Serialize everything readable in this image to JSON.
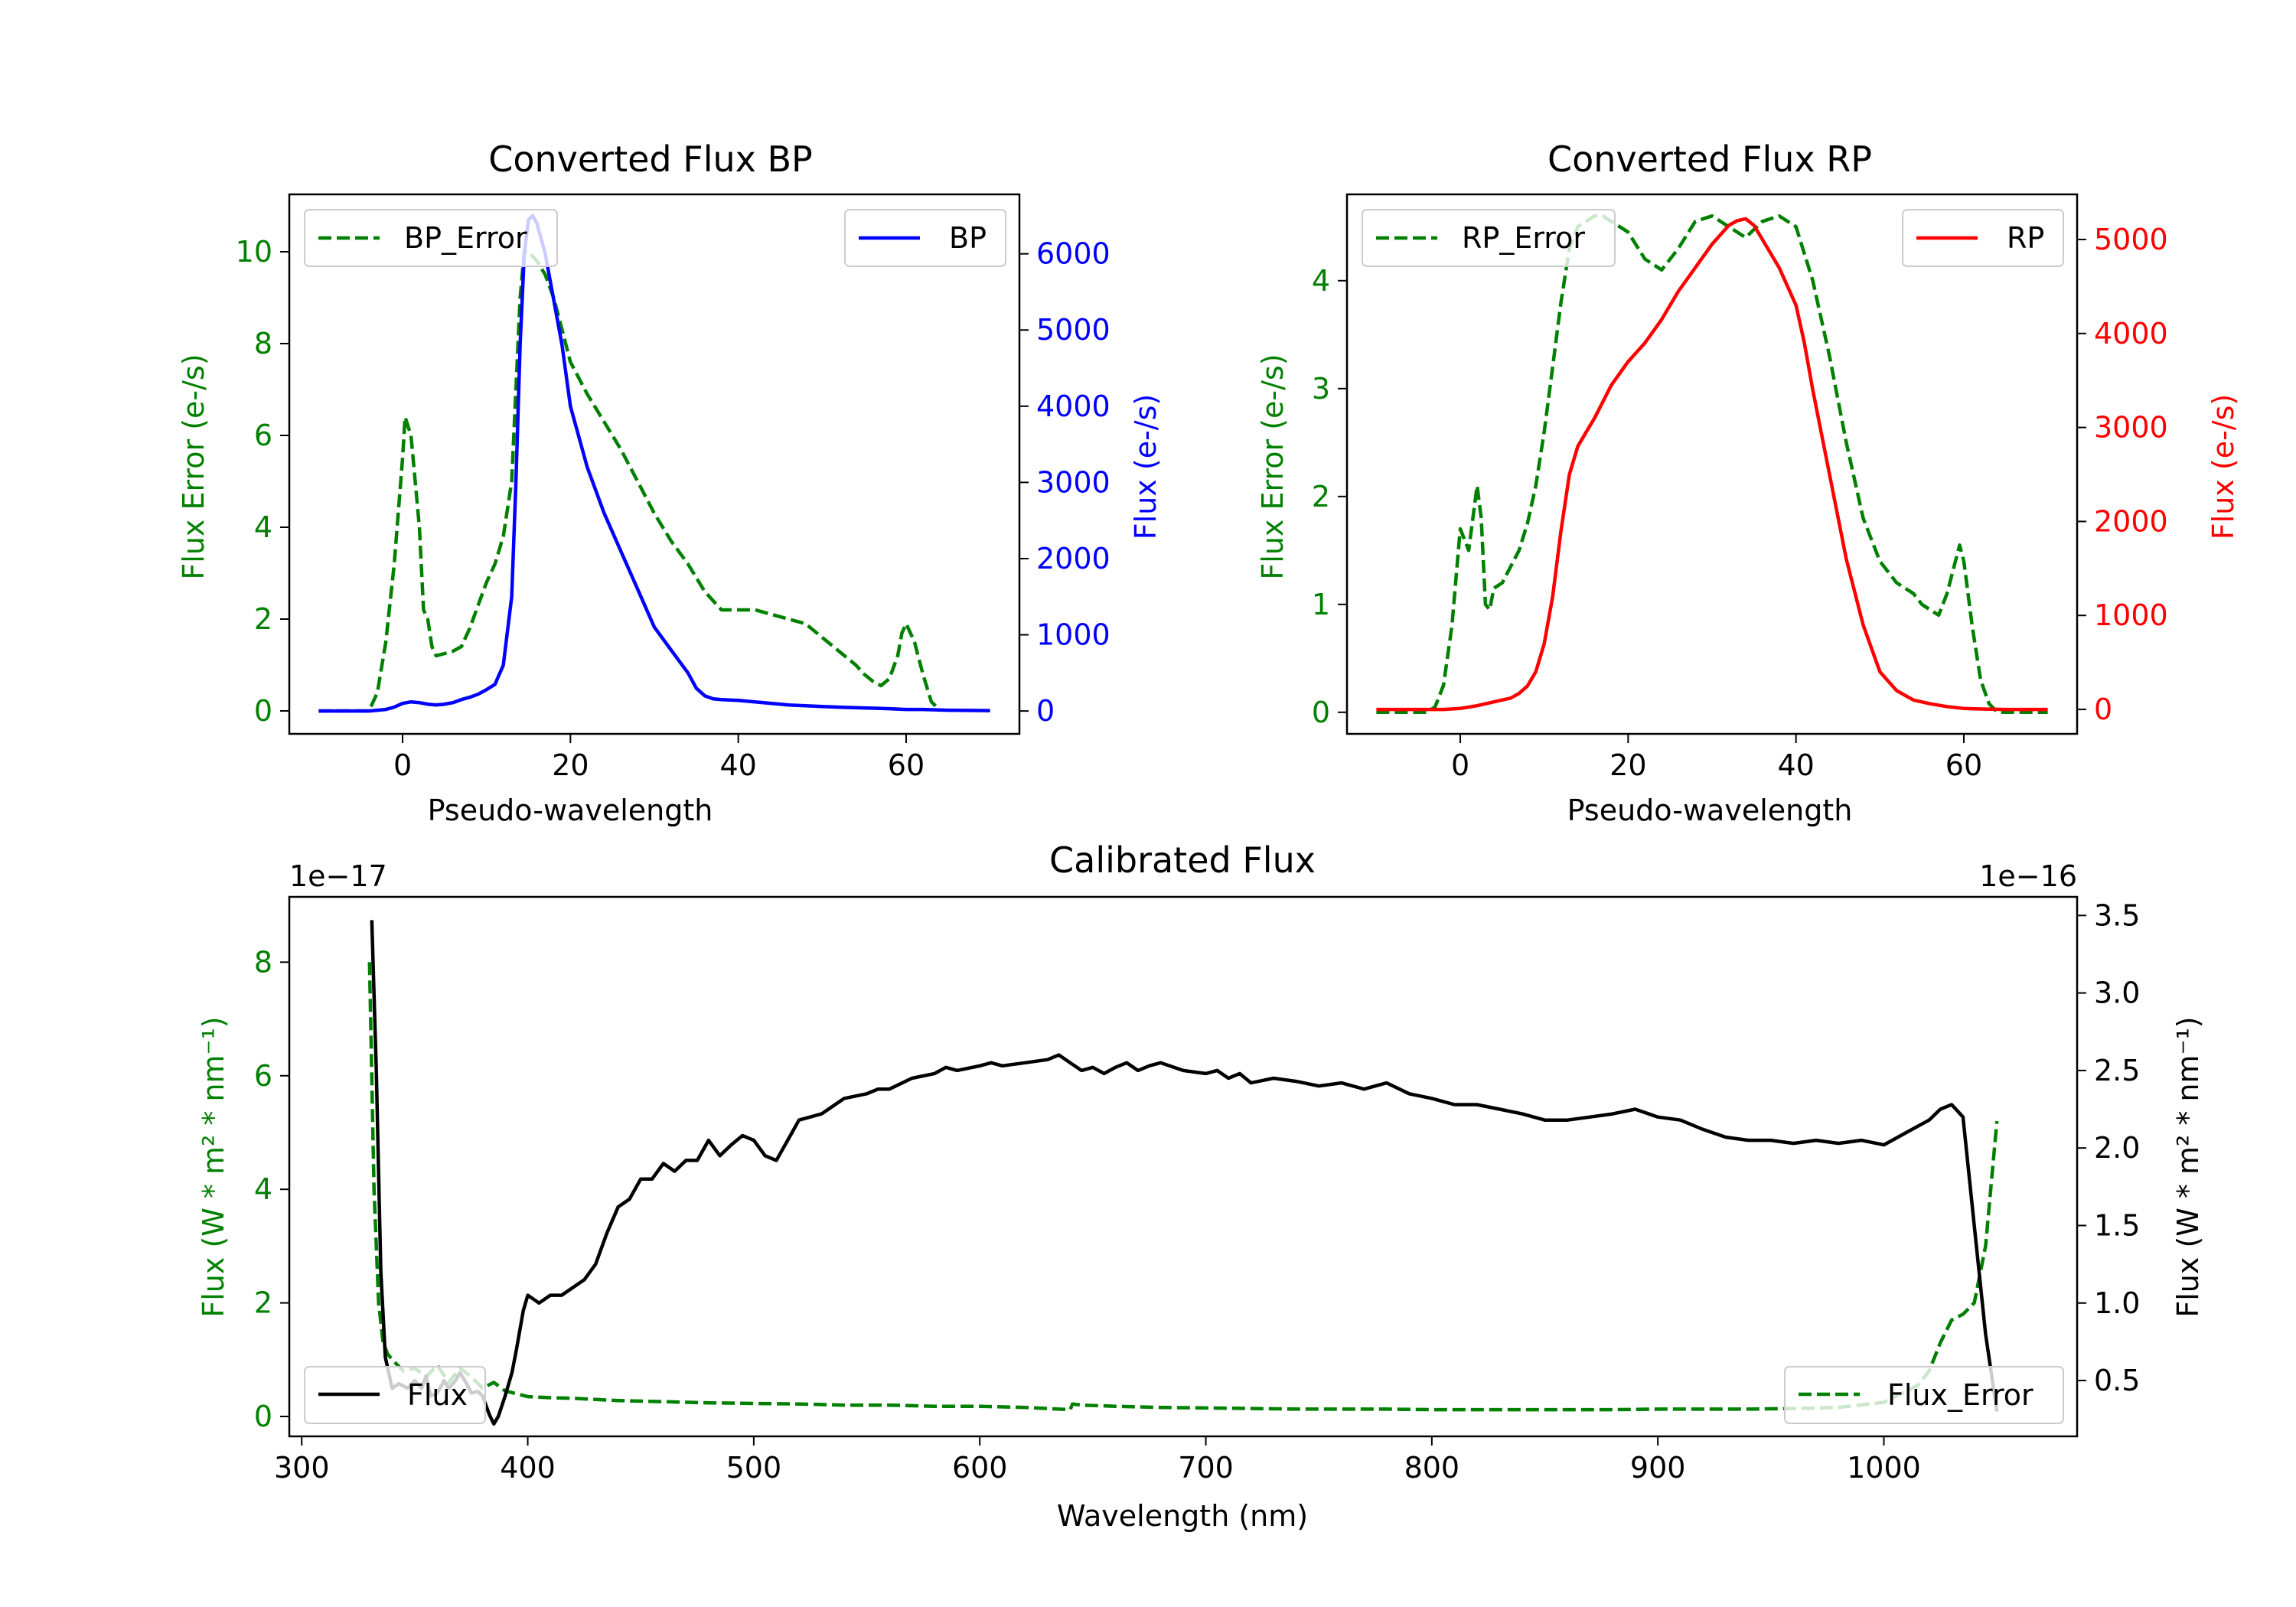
{
  "colors": {
    "green": "#008000",
    "blue": "#0000ff",
    "red": "#ff0000",
    "black": "#000000"
  },
  "chart_data": [
    {
      "id": "bp",
      "type": "line",
      "title": "Converted Flux BP",
      "xlabel": "Pseudo-wavelength",
      "ylabel_left": "Flux Error (e-/s)",
      "ylabel_right": "Flux (e-/s)",
      "xlim": [
        -13.5,
        73.5
      ],
      "ylim_left": [
        -0.5,
        11.25
      ],
      "ylim_right": [
        -300,
        6780
      ],
      "xticks": [
        0,
        20,
        40,
        60
      ],
      "yticks_left": [
        0,
        2,
        4,
        6,
        8,
        10
      ],
      "yticks_right": [
        0,
        1000,
        2000,
        3000,
        4000,
        5000,
        6000
      ],
      "legend_left": "BP_Error",
      "legend_right": "BP",
      "series": [
        {
          "name": "BP_Error",
          "axis": "left",
          "color": "#008000",
          "dash": true,
          "x": [
            -10,
            -4,
            -3,
            -2,
            -1,
            0,
            0.3,
            1,
            2,
            2.5,
            3,
            3.5,
            4,
            5,
            6,
            7,
            8,
            9,
            10,
            11,
            12,
            13,
            13.5,
            14,
            14.5,
            15,
            16,
            17,
            18,
            19,
            20,
            22,
            24,
            26,
            28,
            30,
            32,
            34,
            36,
            38,
            40,
            42,
            44,
            46,
            48,
            50,
            52,
            54,
            55,
            56,
            57,
            58,
            59,
            59.5,
            60,
            61,
            62,
            63,
            64
          ],
          "y": [
            0,
            0,
            0.4,
            1.5,
            3.2,
            5.5,
            6.4,
            6.0,
            4.0,
            2.2,
            2.0,
            1.4,
            1.2,
            1.25,
            1.3,
            1.4,
            1.8,
            2.3,
            2.8,
            3.2,
            3.8,
            5.0,
            7.0,
            9.0,
            10.0,
            10.0,
            9.8,
            9.5,
            9.0,
            8.3,
            7.6,
            6.9,
            6.3,
            5.7,
            5.0,
            4.3,
            3.7,
            3.2,
            2.6,
            2.2,
            2.2,
            2.2,
            2.1,
            2.0,
            1.9,
            1.6,
            1.3,
            1.0,
            0.8,
            0.65,
            0.55,
            0.7,
            1.2,
            1.7,
            1.9,
            1.5,
            0.8,
            0.2,
            0.02
          ]
        },
        {
          "name": "BP",
          "axis": "right",
          "color": "#0000ff",
          "dash": false,
          "x": [
            -10,
            -6,
            -4,
            -2,
            -1,
            0,
            1,
            2,
            3,
            4,
            5,
            6,
            7,
            8,
            9,
            10,
            11,
            12,
            13,
            13.5,
            14,
            14.5,
            15,
            15.5,
            16,
            17,
            18,
            19,
            20,
            22,
            24,
            26,
            28,
            30,
            32,
            34,
            35,
            36,
            37,
            38,
            40,
            42,
            44,
            46,
            48,
            50,
            52,
            55,
            58,
            60,
            62,
            65,
            70
          ],
          "y": [
            0,
            0,
            0,
            20,
            50,
            100,
            120,
            110,
            90,
            80,
            90,
            110,
            150,
            180,
            220,
            280,
            350,
            600,
            1500,
            3000,
            4800,
            6000,
            6450,
            6500,
            6400,
            6000,
            5400,
            4800,
            4000,
            3200,
            2600,
            2100,
            1600,
            1100,
            800,
            500,
            300,
            200,
            160,
            150,
            140,
            120,
            100,
            80,
            70,
            60,
            50,
            40,
            30,
            20,
            20,
            10,
            5
          ]
        }
      ]
    },
    {
      "id": "rp",
      "type": "line",
      "title": "Converted Flux RP",
      "xlabel": "Pseudo-wavelength",
      "ylabel_left": "Flux Error (e-/s)",
      "ylabel_right": "Flux (e-/s)",
      "xlim": [
        -13.5,
        73.5
      ],
      "ylim_left": [
        -0.2,
        4.8
      ],
      "ylim_right": [
        -260,
        5480
      ],
      "xticks": [
        0,
        20,
        40,
        60
      ],
      "yticks_left": [
        0,
        1,
        2,
        3,
        4
      ],
      "yticks_right": [
        0,
        1000,
        2000,
        3000,
        4000,
        5000
      ],
      "legend_left": "RP_Error",
      "legend_right": "RP",
      "series": [
        {
          "name": "RP_Error",
          "axis": "left",
          "color": "#008000",
          "dash": true,
          "x": [
            -10,
            -4,
            -3,
            -2,
            -1,
            0,
            1,
            1.5,
            2,
            2.5,
            3,
            3.5,
            4,
            5,
            6,
            7,
            8,
            9,
            10,
            11,
            12,
            13,
            14,
            15,
            16,
            17,
            18,
            19,
            20,
            22,
            24,
            26,
            28,
            30,
            32,
            34,
            36,
            38,
            40,
            42,
            44,
            46,
            48,
            50,
            52,
            54,
            55,
            56,
            57,
            58,
            59,
            59.5,
            60,
            61,
            62,
            63,
            64,
            66,
            70
          ],
          "y": [
            0,
            0,
            0.05,
            0.25,
            0.8,
            1.7,
            1.5,
            1.8,
            2.1,
            1.8,
            1.0,
            0.95,
            1.15,
            1.2,
            1.35,
            1.5,
            1.75,
            2.1,
            2.6,
            3.2,
            3.8,
            4.3,
            4.5,
            4.55,
            4.6,
            4.6,
            4.55,
            4.5,
            4.45,
            4.2,
            4.1,
            4.3,
            4.55,
            4.6,
            4.5,
            4.4,
            4.55,
            4.6,
            4.5,
            4.0,
            3.3,
            2.5,
            1.8,
            1.4,
            1.2,
            1.1,
            1.0,
            0.95,
            0.9,
            1.1,
            1.4,
            1.55,
            1.4,
            0.8,
            0.3,
            0.08,
            0,
            0,
            0
          ]
        },
        {
          "name": "RP",
          "axis": "right",
          "color": "#ff0000",
          "dash": false,
          "x": [
            -10,
            -5,
            -2,
            0,
            2,
            4,
            6,
            7,
            8,
            9,
            10,
            11,
            12,
            13,
            14,
            15,
            16,
            18,
            20,
            22,
            24,
            26,
            28,
            30,
            32,
            33,
            34,
            35,
            36,
            38,
            40,
            41,
            42,
            44,
            46,
            48,
            50,
            52,
            54,
            56,
            58,
            60,
            62,
            65,
            70
          ],
          "y": [
            0,
            0,
            0,
            10,
            40,
            80,
            120,
            170,
            250,
            400,
            700,
            1200,
            1900,
            2500,
            2800,
            2950,
            3100,
            3450,
            3700,
            3900,
            4150,
            4450,
            4700,
            4950,
            5150,
            5200,
            5220,
            5150,
            5000,
            4700,
            4300,
            3900,
            3400,
            2500,
            1600,
            900,
            400,
            200,
            100,
            60,
            30,
            10,
            5,
            0,
            0
          ]
        }
      ]
    },
    {
      "id": "calib",
      "type": "line",
      "title": "Calibrated Flux",
      "xlabel": "Wavelength (nm)",
      "ylabel_left": "Flux (W * m² * nm⁻¹)",
      "ylabel_right": "Flux (W * m² * nm⁻¹)",
      "offset_left": "1e−17",
      "offset_right": "1e−16",
      "xlim": [
        294.5,
        1085.5
      ],
      "ylim_left": [
        -0.35,
        9.15
      ],
      "ylim_right": [
        0.14,
        3.62
      ],
      "xticks": [
        300,
        400,
        500,
        600,
        700,
        800,
        900,
        1000
      ],
      "yticks_left": [
        0,
        2,
        4,
        6,
        8
      ],
      "yticks_right": [
        0.5,
        1.0,
        1.5,
        2.0,
        2.5,
        3.0,
        3.5
      ],
      "legend_left": "Flux",
      "legend_right": "Flux_Error",
      "series": [
        {
          "name": "Flux_Error",
          "axis": "left",
          "color": "#008000",
          "dash": true,
          "x": [
            330,
            332,
            334,
            336,
            338,
            340,
            345,
            350,
            355,
            360,
            365,
            370,
            375,
            380,
            385,
            390,
            395,
            400,
            410,
            420,
            430,
            440,
            460,
            480,
            500,
            520,
            540,
            560,
            580,
            600,
            620,
            640,
            641,
            645,
            660,
            680,
            700,
            720,
            740,
            760,
            780,
            800,
            820,
            840,
            860,
            880,
            900,
            920,
            940,
            960,
            980,
            1000,
            1005,
            1010,
            1015,
            1020,
            1025,
            1030,
            1035,
            1040,
            1045,
            1050
          ],
          "y": [
            8.0,
            4.0,
            2.0,
            1.3,
            1.1,
            1.0,
            0.8,
            0.85,
            0.7,
            0.9,
            0.6,
            0.85,
            0.7,
            0.5,
            0.6,
            0.45,
            0.4,
            0.35,
            0.33,
            0.32,
            0.3,
            0.28,
            0.26,
            0.24,
            0.23,
            0.22,
            0.2,
            0.2,
            0.18,
            0.18,
            0.16,
            0.12,
            0.22,
            0.2,
            0.18,
            0.16,
            0.15,
            0.14,
            0.13,
            0.13,
            0.13,
            0.12,
            0.12,
            0.12,
            0.12,
            0.12,
            0.13,
            0.13,
            0.13,
            0.14,
            0.16,
            0.25,
            0.35,
            0.45,
            0.55,
            0.8,
            1.3,
            1.7,
            1.8,
            2.0,
            3.0,
            5.2
          ]
        },
        {
          "name": "Flux",
          "axis": "right",
          "color": "#000000",
          "dash": false,
          "x": [
            331,
            333,
            335,
            337,
            340,
            343,
            347,
            350,
            353,
            355,
            357,
            360,
            363,
            365,
            368,
            370,
            373,
            375,
            378,
            380,
            383,
            385,
            387,
            390,
            393,
            395,
            398,
            400,
            403,
            405,
            410,
            415,
            420,
            425,
            430,
            435,
            440,
            445,
            450,
            455,
            460,
            465,
            470,
            475,
            480,
            485,
            490,
            495,
            500,
            505,
            510,
            515,
            520,
            530,
            540,
            550,
            555,
            560,
            570,
            580,
            585,
            590,
            600,
            605,
            610,
            620,
            630,
            635,
            640,
            645,
            650,
            655,
            660,
            665,
            670,
            675,
            680,
            690,
            700,
            705,
            710,
            715,
            720,
            730,
            740,
            750,
            760,
            770,
            780,
            790,
            800,
            810,
            820,
            830,
            840,
            850,
            860,
            870,
            880,
            890,
            900,
            910,
            920,
            930,
            940,
            950,
            960,
            970,
            980,
            990,
            1000,
            1010,
            1020,
            1025,
            1030,
            1035,
            1040,
            1045,
            1050
          ],
          "y": [
            3.47,
            2.5,
            1.2,
            0.65,
            0.45,
            0.48,
            0.45,
            0.5,
            0.45,
            0.53,
            0.4,
            0.42,
            0.5,
            0.45,
            0.5,
            0.55,
            0.48,
            0.42,
            0.43,
            0.4,
            0.28,
            0.22,
            0.27,
            0.4,
            0.55,
            0.7,
            0.95,
            1.05,
            1.02,
            1.0,
            1.05,
            1.05,
            1.1,
            1.15,
            1.25,
            1.45,
            1.62,
            1.67,
            1.8,
            1.8,
            1.9,
            1.85,
            1.92,
            1.92,
            2.05,
            1.95,
            2.02,
            2.08,
            2.05,
            1.95,
            1.92,
            2.05,
            2.18,
            2.22,
            2.32,
            2.35,
            2.38,
            2.38,
            2.45,
            2.48,
            2.52,
            2.5,
            2.53,
            2.55,
            2.53,
            2.55,
            2.57,
            2.6,
            2.55,
            2.5,
            2.52,
            2.48,
            2.52,
            2.55,
            2.5,
            2.53,
            2.55,
            2.5,
            2.48,
            2.5,
            2.45,
            2.48,
            2.42,
            2.45,
            2.43,
            2.4,
            2.42,
            2.38,
            2.42,
            2.35,
            2.32,
            2.28,
            2.28,
            2.25,
            2.22,
            2.18,
            2.18,
            2.2,
            2.22,
            2.25,
            2.2,
            2.18,
            2.12,
            2.07,
            2.05,
            2.05,
            2.03,
            2.05,
            2.03,
            2.05,
            2.02,
            2.1,
            2.18,
            2.25,
            2.28,
            2.2,
            1.5,
            0.8,
            0.3
          ]
        }
      ]
    }
  ]
}
